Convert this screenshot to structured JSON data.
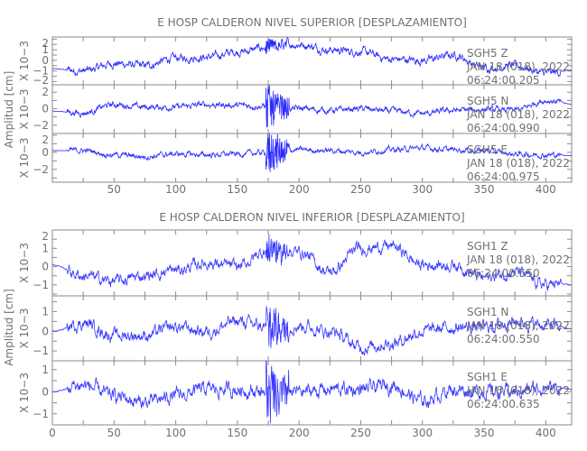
{
  "chart_data": [
    {
      "type": "line",
      "title": "E HOSP CALDERON NIVEL SUPERIOR [DESPLAZAMIENTO]",
      "ylabel": "Amplitud [cm]",
      "panel_ylabel": "X 10−3",
      "xlim": [
        0,
        421
      ],
      "xticks": [
        50,
        100,
        150,
        200,
        250,
        300,
        350,
        400
      ],
      "trend_step": 25,
      "series_color": "#2a2aff",
      "traces": [
        {
          "name": "SGH5  Z",
          "date": "JAN 18 (018), 2022",
          "time": "06:24:00.205",
          "ylim": [
            -2.3,
            2.2
          ],
          "yticks": [
            -2,
            -1,
            0,
            1,
            2
          ],
          "trend": [
            -0.8,
            -1.0,
            -0.3,
            -0.5,
            0.2,
            0.3,
            0.8,
            1.2,
            1.5,
            1.0,
            0.8,
            0.1,
            0.0,
            0.5,
            -0.7,
            -0.5,
            -1.2,
            -0.9
          ],
          "noise": 0.35,
          "burst": 0.6
        },
        {
          "name": "SGH5  N",
          "date": "JAN 18 (018), 2022",
          "time": "06:24:00.990",
          "ylim": [
            -3.0,
            2.9
          ],
          "yticks": [
            -2,
            0,
            2
          ],
          "trend": [
            -0.3,
            -0.5,
            0.5,
            0.2,
            0.2,
            0.5,
            0.4,
            0.3,
            0.0,
            -0.2,
            0.0,
            -0.3,
            -0.6,
            -0.2,
            -0.1,
            -0.2,
            1.0,
            0.5
          ],
          "noise": 0.35,
          "burst": 2.4
        },
        {
          "name": "SGH5  E",
          "date": "JAN 18 (018), 2022",
          "time": "06:24:00.975",
          "ylim": [
            -3.5,
            2.2
          ],
          "yticks": [
            -2,
            0,
            2
          ],
          "trend": [
            0.2,
            0.2,
            -0.3,
            -0.5,
            -0.2,
            -0.3,
            -0.2,
            0.0,
            0.3,
            0.2,
            0.0,
            0.3,
            0.5,
            0.3,
            0.2,
            -0.2,
            -0.3,
            -0.4
          ],
          "noise": 0.3,
          "burst": 2.6
        }
      ]
    },
    {
      "type": "line",
      "title": "E HOSP CALDERON NIVEL INFERIOR [DESPLAZAMIENTO]",
      "ylabel": "Amplitud [cm]",
      "panel_ylabel": "X 10−3",
      "xlim": [
        0,
        421
      ],
      "xticks": [
        0,
        50,
        100,
        150,
        200,
        250,
        300,
        350,
        400
      ],
      "trend_step": 25,
      "series_color": "#3a3aff",
      "traces": [
        {
          "name": "SGH1  Z",
          "date": "JAN 18 (018), 2022",
          "time": "06:24:00.550",
          "ylim": [
            -1.6,
            2.0
          ],
          "yticks": [
            -1,
            0,
            1,
            2
          ],
          "trend": [
            0.1,
            -0.5,
            -0.8,
            -0.5,
            -0.2,
            0.2,
            0.0,
            0.9,
            0.8,
            -0.3,
            1.0,
            1.1,
            0.1,
            0.1,
            -0.6,
            -0.3,
            -1.0,
            -1.0
          ],
          "noise": 0.3,
          "burst": 0.8
        },
        {
          "name": "SGH1  N",
          "date": "JAN 18 (018), 2022",
          "time": "06:24:00.550",
          "ylim": [
            -1.5,
            1.8
          ],
          "yticks": [
            -1,
            0,
            1
          ],
          "trend": [
            0.0,
            0.4,
            -0.2,
            -0.2,
            0.2,
            0.0,
            0.5,
            0.2,
            0.3,
            0.0,
            -0.8,
            -0.6,
            0.0,
            0.2,
            0.2,
            0.5,
            0.3,
            0.1
          ],
          "noise": 0.3,
          "burst": 1.2
        },
        {
          "name": "SGH1  E",
          "date": "JAN 18 (018), 2022",
          "time": "06:24:00.635",
          "ylim": [
            -1.5,
            1.4
          ],
          "yticks": [
            -1,
            0,
            1
          ],
          "trend": [
            0.0,
            0.3,
            -0.2,
            -0.5,
            -0.2,
            0.1,
            0.1,
            0.0,
            0.0,
            0.1,
            0.1,
            0.3,
            -0.4,
            0.1,
            0.0,
            0.0,
            0.2,
            0.1
          ],
          "noise": 0.3,
          "burst": 1.3
        }
      ]
    }
  ]
}
